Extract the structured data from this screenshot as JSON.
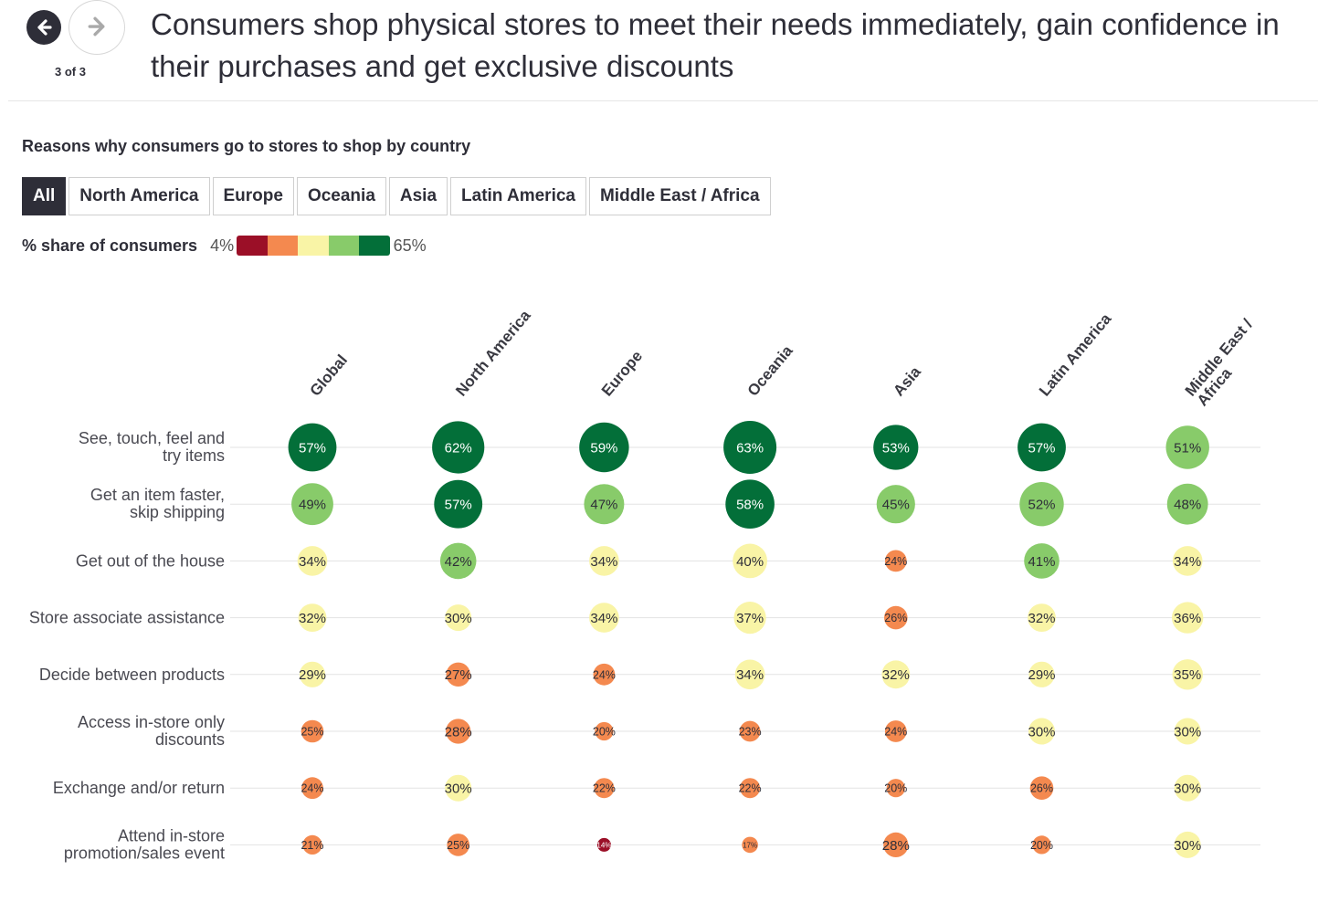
{
  "header": {
    "page_indicator": "3 of 3",
    "title": "Consumers shop physical stores to meet their needs immediately, gain confidence in their purchases and get exclusive discounts",
    "prev_icon": "arrow-left-icon",
    "next_icon": "arrow-right-icon"
  },
  "filters": [
    "All",
    "North America",
    "Europe",
    "Oceania",
    "Asia",
    "Latin America",
    "Middle East / Africa"
  ],
  "active_filter": "All",
  "legend": {
    "label": "% share of consumers",
    "min": "4%",
    "max": "65%",
    "colors": [
      "#9b0f27",
      "#f4894f",
      "#f9f4a6",
      "#88cb6a",
      "#036f39"
    ]
  },
  "chart_data": {
    "type": "bubble-heatmap",
    "title": "Reasons why consumers go to stores to shop by country",
    "unit": "%",
    "value_range": [
      4,
      65
    ],
    "columns": [
      "Global",
      "North America",
      "Europe",
      "Oceania",
      "Asia",
      "Latin America",
      "Middle East / Africa"
    ],
    "rows": [
      {
        "label": "See, touch, feel and try items",
        "values": [
          57,
          62,
          59,
          63,
          53,
          57,
          51
        ]
      },
      {
        "label": "Get an item faster, skip shipping",
        "values": [
          49,
          57,
          47,
          58,
          45,
          52,
          48
        ]
      },
      {
        "label": "Get out of the house",
        "values": [
          34,
          42,
          34,
          40,
          24,
          41,
          34
        ]
      },
      {
        "label": "Store associate assistance",
        "values": [
          32,
          30,
          34,
          37,
          26,
          32,
          36
        ]
      },
      {
        "label": "Decide between products",
        "values": [
          29,
          27,
          24,
          34,
          32,
          29,
          35
        ]
      },
      {
        "label": "Access in-store only discounts",
        "values": [
          25,
          28,
          20,
          23,
          24,
          30,
          30
        ]
      },
      {
        "label": "Exchange and/or return",
        "values": [
          24,
          30,
          22,
          22,
          20,
          26,
          30
        ]
      },
      {
        "label": "Attend in-store promotion/sales event",
        "values": [
          21,
          25,
          14,
          17,
          28,
          20,
          30
        ]
      }
    ]
  }
}
